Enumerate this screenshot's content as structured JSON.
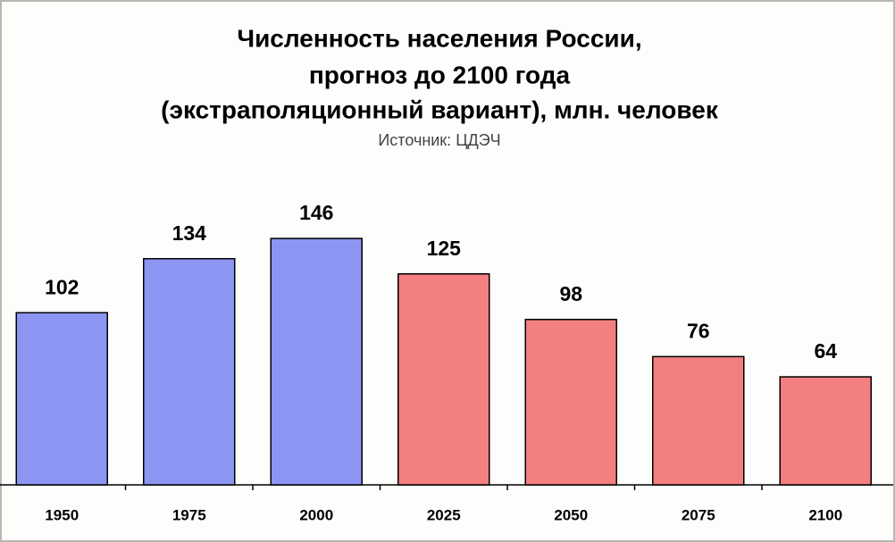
{
  "chart_data": {
    "type": "bar",
    "title": [
      "Численность населения России,",
      "прогноз до 2100 года",
      "(экстраполяционный вариант), млн. человек"
    ],
    "subtitle": "Источник: ЦДЭЧ",
    "categories": [
      "1950",
      "1975",
      "2000",
      "2025",
      "2050",
      "2075",
      "2100"
    ],
    "values": [
      102,
      134,
      146,
      125,
      98,
      76,
      64
    ],
    "colors": [
      "#8c96f2",
      "#8c96f2",
      "#8c96f2",
      "#f47f80",
      "#f47f80",
      "#f47f80",
      "#f47f80"
    ]
  }
}
